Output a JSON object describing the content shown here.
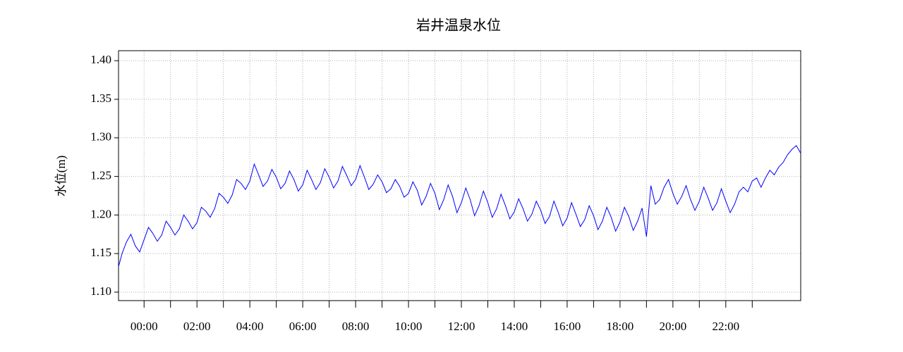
{
  "chart_data": {
    "type": "line",
    "title": "岩井温泉水位",
    "ylabel": "水位(m)",
    "color": "#0000ff",
    "grid": true,
    "xlim": [
      -58,
      1490
    ],
    "ylim": [
      1.089,
      1.413
    ],
    "xticks": [
      {
        "value": 0,
        "label": "00:00"
      },
      {
        "value": 120,
        "label": "02:00"
      },
      {
        "value": 240,
        "label": "04:00"
      },
      {
        "value": 360,
        "label": "06:00"
      },
      {
        "value": 480,
        "label": "08:00"
      },
      {
        "value": 600,
        "label": "10:00"
      },
      {
        "value": 720,
        "label": "12:00"
      },
      {
        "value": 840,
        "label": "14:00"
      },
      {
        "value": 960,
        "label": "16:00"
      },
      {
        "value": 1080,
        "label": "18:00"
      },
      {
        "value": 1200,
        "label": "20:00"
      },
      {
        "value": 1320,
        "label": "22:00"
      }
    ],
    "xminor_ticks": [
      60,
      180,
      300,
      420,
      540,
      660,
      780,
      900,
      1020,
      1140,
      1260,
      1380
    ],
    "yticks": [
      {
        "value": 1.1,
        "label": "1.10"
      },
      1.15,
      {
        "value": 1.2,
        "label": "1.20"
      },
      1.25,
      {
        "value": 1.3,
        "label": "1.30"
      },
      1.35,
      {
        "value": 1.4,
        "label": "1.40"
      }
    ],
    "x": [
      -58,
      -50,
      -40,
      -30,
      -20,
      -10,
      0,
      10,
      20,
      30,
      40,
      50,
      60,
      70,
      80,
      90,
      100,
      110,
      120,
      130,
      140,
      150,
      160,
      170,
      180,
      190,
      200,
      210,
      220,
      230,
      240,
      250,
      260,
      270,
      280,
      290,
      300,
      310,
      320,
      330,
      340,
      350,
      360,
      370,
      380,
      390,
      400,
      410,
      420,
      430,
      440,
      450,
      460,
      470,
      480,
      490,
      500,
      510,
      520,
      530,
      540,
      550,
      560,
      570,
      580,
      590,
      600,
      610,
      620,
      630,
      640,
      650,
      660,
      670,
      680,
      690,
      700,
      710,
      720,
      730,
      740,
      750,
      760,
      770,
      780,
      790,
      800,
      810,
      820,
      830,
      840,
      850,
      860,
      870,
      880,
      890,
      900,
      910,
      920,
      930,
      940,
      950,
      960,
      970,
      980,
      990,
      1000,
      1010,
      1020,
      1030,
      1040,
      1050,
      1060,
      1070,
      1080,
      1090,
      1100,
      1110,
      1120,
      1130,
      1140,
      1150,
      1160,
      1170,
      1180,
      1190,
      1200,
      1210,
      1220,
      1230,
      1240,
      1250,
      1260,
      1270,
      1280,
      1290,
      1300,
      1310,
      1320,
      1330,
      1340,
      1350,
      1360,
      1370,
      1380,
      1390,
      1400,
      1410,
      1420,
      1430,
      1440,
      1450,
      1460,
      1470,
      1480,
      1490
    ],
    "values": [
      1.133,
      1.15,
      1.165,
      1.175,
      1.16,
      1.152,
      1.168,
      1.184,
      1.176,
      1.166,
      1.174,
      1.192,
      1.184,
      1.174,
      1.182,
      1.2,
      1.192,
      1.182,
      1.19,
      1.21,
      1.205,
      1.197,
      1.208,
      1.228,
      1.223,
      1.215,
      1.226,
      1.246,
      1.241,
      1.233,
      1.244,
      1.266,
      1.252,
      1.237,
      1.244,
      1.259,
      1.249,
      1.234,
      1.241,
      1.257,
      1.246,
      1.231,
      1.239,
      1.258,
      1.246,
      1.233,
      1.242,
      1.26,
      1.249,
      1.235,
      1.244,
      1.263,
      1.251,
      1.238,
      1.246,
      1.264,
      1.249,
      1.233,
      1.24,
      1.252,
      1.243,
      1.229,
      1.234,
      1.246,
      1.237,
      1.223,
      1.228,
      1.243,
      1.232,
      1.213,
      1.224,
      1.241,
      1.228,
      1.207,
      1.22,
      1.239,
      1.224,
      1.203,
      1.216,
      1.235,
      1.22,
      1.199,
      1.212,
      1.231,
      1.216,
      1.197,
      1.208,
      1.227,
      1.212,
      1.195,
      1.204,
      1.221,
      1.208,
      1.192,
      1.201,
      1.218,
      1.206,
      1.189,
      1.198,
      1.218,
      1.203,
      1.186,
      1.196,
      1.216,
      1.201,
      1.185,
      1.194,
      1.212,
      1.199,
      1.181,
      1.192,
      1.21,
      1.197,
      1.179,
      1.191,
      1.21,
      1.198,
      1.18,
      1.192,
      1.209,
      1.172,
      1.238,
      1.214,
      1.22,
      1.236,
      1.246,
      1.228,
      1.214,
      1.224,
      1.238,
      1.22,
      1.206,
      1.218,
      1.236,
      1.222,
      1.206,
      1.216,
      1.234,
      1.218,
      1.203,
      1.214,
      1.23,
      1.236,
      1.23,
      1.244,
      1.248,
      1.236,
      1.248,
      1.258,
      1.252,
      1.262,
      1.268,
      1.278,
      1.285,
      1.29,
      1.28
    ]
  }
}
